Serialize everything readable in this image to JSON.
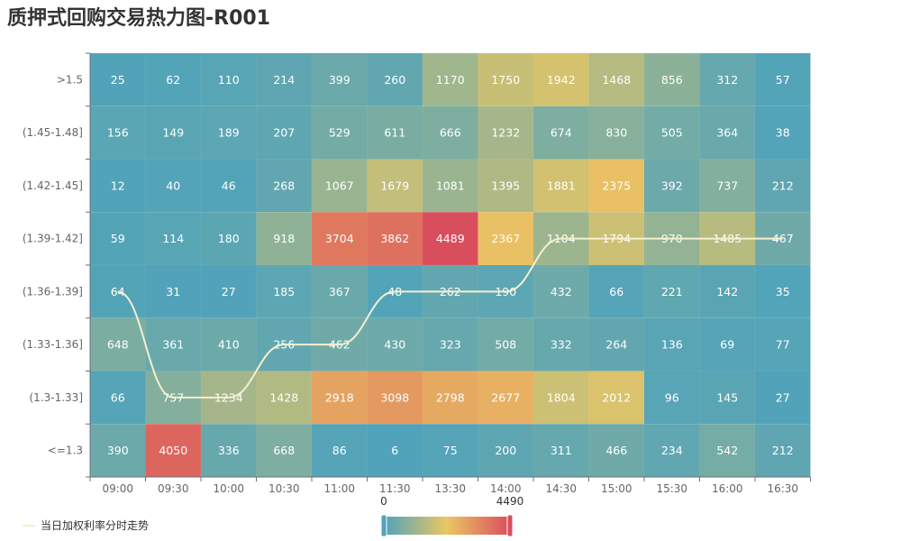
{
  "chart_data": {
    "type": "heatmap",
    "title": "质押式回购交易热力图-R001",
    "x_categories": [
      "09:00",
      "09:30",
      "10:00",
      "10:30",
      "11:00",
      "11:30",
      "13:30",
      "14:00",
      "14:30",
      "15:00",
      "15:30",
      "16:00",
      "16:30"
    ],
    "y_categories": [
      ">1.5",
      "(1.45-1.48]",
      "(1.42-1.45]",
      "(1.39-1.42]",
      "(1.36-1.39]",
      "(1.33-1.36]",
      "(1.3-1.33]",
      "<=1.3"
    ],
    "values": [
      [
        25,
        62,
        110,
        214,
        399,
        260,
        1170,
        1750,
        1942,
        1468,
        856,
        312,
        57
      ],
      [
        156,
        149,
        189,
        207,
        529,
        611,
        666,
        1232,
        674,
        830,
        505,
        364,
        38
      ],
      [
        12,
        40,
        46,
        268,
        1067,
        1679,
        1081,
        1395,
        1881,
        2375,
        392,
        737,
        212
      ],
      [
        59,
        114,
        180,
        918,
        3704,
        3862,
        4489,
        2367,
        1104,
        1794,
        970,
        1485,
        467
      ],
      [
        64,
        31,
        27,
        185,
        367,
        48,
        262,
        190,
        432,
        66,
        221,
        142,
        35
      ],
      [
        648,
        361,
        410,
        256,
        462,
        430,
        323,
        508,
        332,
        264,
        136,
        69,
        77
      ],
      [
        66,
        757,
        1234,
        1428,
        2918,
        3098,
        2798,
        2677,
        1804,
        2012,
        96,
        145,
        27
      ],
      [
        390,
        4050,
        336,
        668,
        86,
        6,
        75,
        200,
        311,
        466,
        234,
        542,
        212
      ]
    ],
    "visual_map": {
      "min": 0,
      "max": 4490,
      "min_label": "0",
      "max_label": "4490",
      "colors": [
        "#50a3ba",
        "#eac763",
        "#d94e5d"
      ]
    },
    "trend_series": {
      "name": "当日加权利率分时走势",
      "color": "#f5efcf",
      "row_index_by_time": [
        4,
        6,
        6,
        5,
        5,
        4,
        4,
        4,
        3,
        3,
        3,
        3,
        3
      ]
    }
  }
}
